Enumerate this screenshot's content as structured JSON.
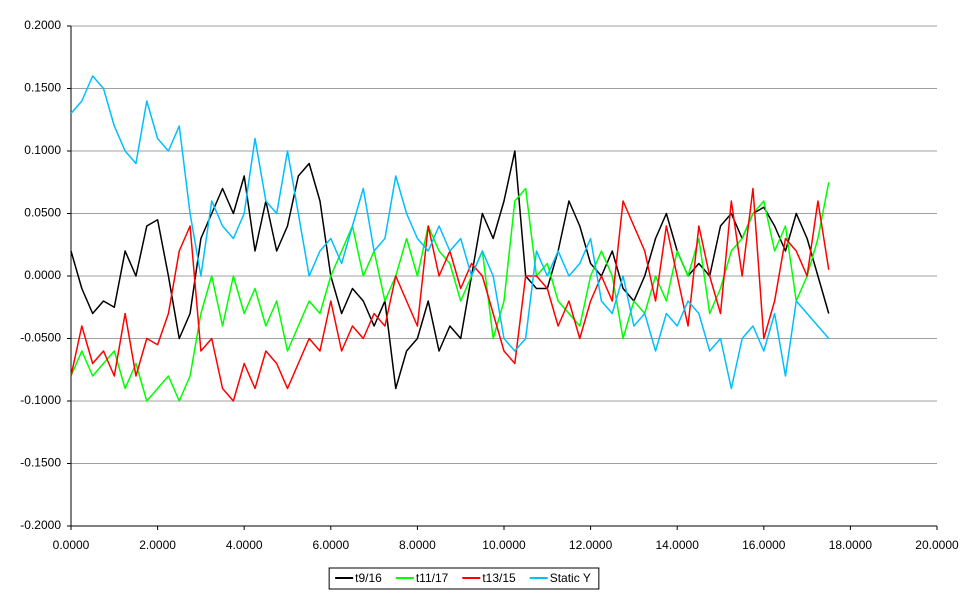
{
  "chart_data": {
    "type": "line",
    "x": [
      0,
      0.25,
      0.5,
      0.75,
      1,
      1.25,
      1.5,
      1.75,
      2,
      2.25,
      2.5,
      2.75,
      3,
      3.25,
      3.5,
      3.75,
      4,
      4.25,
      4.5,
      4.75,
      5,
      5.25,
      5.5,
      5.75,
      6,
      6.25,
      6.5,
      6.75,
      7,
      7.25,
      7.5,
      7.75,
      8,
      8.25,
      8.5,
      8.75,
      9,
      9.25,
      9.5,
      9.75,
      10,
      10.25,
      10.5,
      10.75,
      11,
      11.25,
      11.5,
      11.75,
      12,
      12.25,
      12.5,
      12.75,
      13,
      13.25,
      13.5,
      13.75,
      14,
      14.25,
      14.5,
      14.75,
      15,
      15.25,
      15.5,
      15.75,
      16,
      16.25,
      16.5,
      16.75,
      17,
      17.25,
      17.5
    ],
    "series": [
      {
        "name": "t9/16",
        "color": "#000000",
        "values": [
          0.02,
          -0.01,
          -0.03,
          -0.02,
          -0.025,
          0.02,
          0.0,
          0.04,
          0.045,
          0.0,
          -0.05,
          -0.03,
          0.03,
          0.05,
          0.07,
          0.05,
          0.08,
          0.02,
          0.06,
          0.02,
          0.04,
          0.08,
          0.09,
          0.06,
          0.0,
          -0.03,
          -0.01,
          -0.02,
          -0.04,
          -0.02,
          -0.09,
          -0.06,
          -0.05,
          -0.02,
          -0.06,
          -0.04,
          -0.05,
          0.0,
          0.05,
          0.03,
          0.06,
          0.1,
          0.0,
          -0.01,
          -0.01,
          0.02,
          0.06,
          0.04,
          0.01,
          0.0,
          0.02,
          -0.01,
          -0.02,
          0.0,
          0.03,
          0.05,
          0.02,
          0.0,
          0.01,
          0.0,
          0.04,
          0.05,
          0.03,
          0.05,
          0.055,
          0.04,
          0.02,
          0.05,
          0.03,
          0.0,
          -0.03
        ]
      },
      {
        "name": "t11/17",
        "color": "#00ff00",
        "values": [
          -0.08,
          -0.06,
          -0.08,
          -0.07,
          -0.06,
          -0.09,
          -0.07,
          -0.1,
          -0.09,
          -0.08,
          -0.1,
          -0.08,
          -0.03,
          0.0,
          -0.04,
          0.0,
          -0.03,
          -0.01,
          -0.04,
          -0.02,
          -0.06,
          -0.04,
          -0.02,
          -0.03,
          0.0,
          0.02,
          0.04,
          0.0,
          0.02,
          -0.02,
          0.0,
          0.03,
          0.0,
          0.04,
          0.02,
          0.01,
          -0.02,
          0.0,
          0.02,
          -0.05,
          -0.02,
          0.06,
          0.07,
          0.0,
          0.01,
          -0.02,
          -0.03,
          -0.04,
          0.0,
          0.02,
          0.0,
          -0.05,
          -0.02,
          -0.03,
          0.0,
          -0.02,
          0.02,
          0.0,
          0.03,
          -0.03,
          -0.01,
          0.02,
          0.03,
          0.05,
          0.06,
          0.02,
          0.04,
          -0.02,
          0.0,
          0.03,
          0.075
        ]
      },
      {
        "name": "t13/15",
        "color": "#ff0000",
        "values": [
          -0.08,
          -0.04,
          -0.07,
          -0.06,
          -0.08,
          -0.03,
          -0.08,
          -0.05,
          -0.055,
          -0.03,
          0.02,
          0.04,
          -0.06,
          -0.05,
          -0.09,
          -0.1,
          -0.07,
          -0.09,
          -0.06,
          -0.07,
          -0.09,
          -0.07,
          -0.05,
          -0.06,
          -0.02,
          -0.06,
          -0.04,
          -0.05,
          -0.03,
          -0.04,
          0.0,
          -0.02,
          -0.04,
          0.04,
          0.0,
          0.02,
          -0.01,
          0.01,
          0.0,
          -0.03,
          -0.06,
          -0.07,
          0.0,
          0.0,
          -0.01,
          -0.04,
          -0.02,
          -0.05,
          -0.02,
          0.0,
          -0.02,
          0.06,
          0.04,
          0.02,
          -0.02,
          0.04,
          0.0,
          -0.04,
          0.04,
          0.0,
          -0.03,
          0.06,
          0.0,
          0.07,
          -0.05,
          -0.02,
          0.03,
          0.02,
          0.0,
          0.06,
          0.005
        ]
      },
      {
        "name": "Static Y",
        "color": "#00bfff",
        "values": [
          0.13,
          0.14,
          0.16,
          0.15,
          0.12,
          0.1,
          0.09,
          0.14,
          0.11,
          0.1,
          0.12,
          0.05,
          0.0,
          0.06,
          0.04,
          0.03,
          0.05,
          0.11,
          0.06,
          0.05,
          0.1,
          0.05,
          0.0,
          0.02,
          0.03,
          0.01,
          0.04,
          0.07,
          0.02,
          0.03,
          0.08,
          0.05,
          0.03,
          0.02,
          0.04,
          0.02,
          0.03,
          0.0,
          0.02,
          0.0,
          -0.05,
          -0.06,
          -0.05,
          0.02,
          0.0,
          0.02,
          0.0,
          0.01,
          0.03,
          -0.02,
          -0.03,
          0.0,
          -0.04,
          -0.03,
          -0.06,
          -0.03,
          -0.04,
          -0.02,
          -0.03,
          -0.06,
          -0.05,
          -0.09,
          -0.05,
          -0.04,
          -0.06,
          -0.03,
          -0.08,
          -0.02,
          -0.03,
          -0.04,
          -0.05
        ]
      }
    ],
    "xlim": [
      0,
      20
    ],
    "xticks": [
      {
        "value": 0,
        "label": "0.0000"
      },
      {
        "value": 2,
        "label": "2.0000"
      },
      {
        "value": 4,
        "label": "4.0000"
      },
      {
        "value": 6,
        "label": "6.0000"
      },
      {
        "value": 8,
        "label": "8.0000"
      },
      {
        "value": 10,
        "label": "10.0000"
      },
      {
        "value": 12,
        "label": "12.0000"
      },
      {
        "value": 14,
        "label": "14.0000"
      },
      {
        "value": 16,
        "label": "16.0000"
      },
      {
        "value": 18,
        "label": "18.0000"
      },
      {
        "value": 20,
        "label": "20.0000"
      }
    ],
    "ylim": [
      -0.2,
      0.2
    ],
    "yticks": [
      {
        "value": -0.2,
        "label": "-0.2000"
      },
      {
        "value": -0.15,
        "label": "-0.1500"
      },
      {
        "value": -0.1,
        "label": "-0.1000"
      },
      {
        "value": -0.05,
        "label": "-0.0500"
      },
      {
        "value": 0,
        "label": "0.0000"
      },
      {
        "value": 0.05,
        "label": "0.0500"
      },
      {
        "value": 0.1,
        "label": "0.1000"
      },
      {
        "value": 0.15,
        "label": "0.1500"
      },
      {
        "value": 0.2,
        "label": "0.2000"
      }
    ],
    "grid": true,
    "legend": "bottom"
  }
}
